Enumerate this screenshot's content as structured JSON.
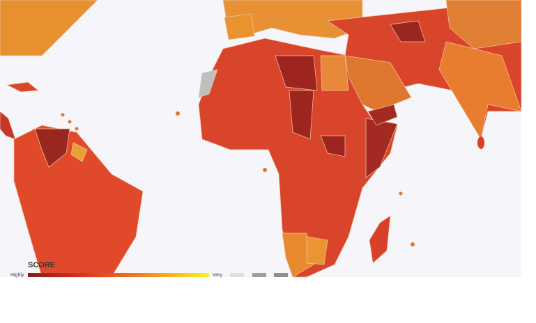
{
  "legend": {
    "title": "SCORE",
    "low_label": "Highly",
    "high_label": "Very"
  }
}
